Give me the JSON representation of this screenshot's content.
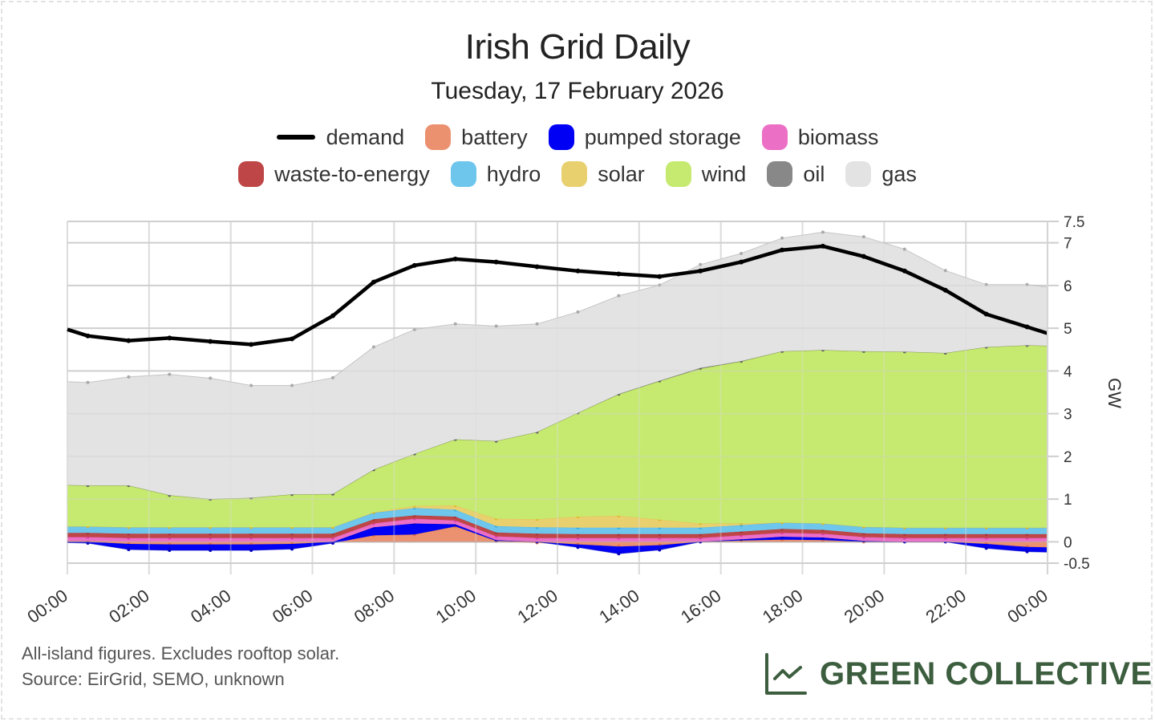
{
  "header": {
    "title": "Irish Grid Daily",
    "subtitle": "Tuesday, 17 February 2026"
  },
  "legend": {
    "row1": [
      {
        "key": "demand",
        "label": "demand",
        "color": "#000000",
        "kind": "line"
      },
      {
        "key": "battery",
        "label": "battery",
        "color": "#ec916f",
        "kind": "area"
      },
      {
        "key": "pumped_storage",
        "label": "pumped storage",
        "color": "#0000f5",
        "kind": "area"
      },
      {
        "key": "biomass",
        "label": "biomass",
        "color": "#ec6fc6",
        "kind": "area"
      }
    ],
    "row2": [
      {
        "key": "waste_to_energy",
        "label": "waste-to-energy",
        "color": "#bf4646",
        "kind": "area"
      },
      {
        "key": "hydro",
        "label": "hydro",
        "color": "#6ec6ec",
        "kind": "area"
      },
      {
        "key": "solar",
        "label": "solar",
        "color": "#e9d06f",
        "kind": "area"
      },
      {
        "key": "wind",
        "label": "wind",
        "color": "#c6ea6f",
        "kind": "area"
      },
      {
        "key": "oil",
        "label": "oil",
        "color": "#888888",
        "kind": "area"
      },
      {
        "key": "gas",
        "label": "gas",
        "color": "#e3e3e3",
        "kind": "area"
      }
    ]
  },
  "chart_data": {
    "type": "area",
    "title": "Irish Grid Daily",
    "subtitle": "Tuesday, 17 February 2026",
    "xlabel": "",
    "ylabel": "GW",
    "ylim": [
      -0.5,
      7.5
    ],
    "yticks": [
      7.5,
      7,
      6,
      5,
      4,
      3,
      2,
      1,
      0,
      -0.5
    ],
    "ytick_labels": [
      "7.5",
      "7",
      "6",
      "5",
      "4",
      "3",
      "2",
      "1",
      "0",
      "-0.5"
    ],
    "xlim_hours": [
      0,
      24
    ],
    "xticks_hours": [
      0,
      2,
      4,
      6,
      8,
      10,
      12,
      14,
      16,
      18,
      20,
      22,
      24
    ],
    "xtick_labels": [
      "00:00",
      "02:00",
      "04:00",
      "06:00",
      "08:00",
      "10:00",
      "12:00",
      "14:00",
      "16:00",
      "18:00",
      "20:00",
      "22:00",
      "00:00"
    ],
    "grid": true,
    "y_axis_side": "right",
    "legend_position": "top-center",
    "x_hours": [
      0,
      0.5,
      1.5,
      2.5,
      3.5,
      4.5,
      5.5,
      6.5,
      7.5,
      8.5,
      9.5,
      10.5,
      11.5,
      12.5,
      13.5,
      14.5,
      15.5,
      16.5,
      17.5,
      18.5,
      19.5,
      20.5,
      21.5,
      22.5,
      23.5,
      24
    ],
    "stack_order": [
      "battery",
      "pumped_storage",
      "biomass",
      "waste_to_energy",
      "hydro",
      "solar",
      "wind",
      "oil",
      "gas"
    ],
    "series": [
      {
        "name": "battery",
        "key": "battery",
        "color": "#ec916f",
        "values": [
          0.02,
          0.02,
          -0.05,
          -0.06,
          -0.06,
          -0.06,
          -0.05,
          0.0,
          0.15,
          0.17,
          0.36,
          0.02,
          -0.02,
          -0.06,
          -0.11,
          -0.08,
          0.0,
          0.03,
          0.05,
          0.04,
          0.0,
          0.0,
          0.0,
          -0.05,
          -0.12,
          -0.13
        ]
      },
      {
        "name": "pumped storage",
        "key": "pumped_storage",
        "color": "#0000f5",
        "values": [
          -0.02,
          -0.03,
          -0.13,
          -0.14,
          -0.14,
          -0.14,
          -0.12,
          -0.03,
          0.19,
          0.26,
          0.05,
          0.02,
          0.0,
          -0.07,
          -0.17,
          -0.11,
          0.0,
          0.03,
          0.07,
          0.06,
          0.02,
          0.0,
          0.0,
          -0.1,
          -0.11,
          -0.11
        ]
      },
      {
        "name": "biomass",
        "key": "biomass",
        "color": "#ec6fc6",
        "values": [
          0.09,
          0.09,
          0.09,
          0.09,
          0.09,
          0.09,
          0.09,
          0.09,
          0.09,
          0.11,
          0.09,
          0.09,
          0.09,
          0.09,
          0.09,
          0.09,
          0.09,
          0.09,
          0.09,
          0.09,
          0.09,
          0.09,
          0.09,
          0.09,
          0.09,
          0.09
        ]
      },
      {
        "name": "waste-to-energy",
        "key": "waste_to_energy",
        "color": "#bf4646",
        "values": [
          0.1,
          0.1,
          0.1,
          0.1,
          0.1,
          0.1,
          0.1,
          0.1,
          0.1,
          0.08,
          0.09,
          0.09,
          0.1,
          0.09,
          0.09,
          0.09,
          0.09,
          0.09,
          0.09,
          0.09,
          0.09,
          0.09,
          0.09,
          0.09,
          0.09,
          0.09
        ]
      },
      {
        "name": "hydro",
        "key": "hydro",
        "color": "#6ec6ec",
        "values": [
          0.15,
          0.15,
          0.15,
          0.15,
          0.15,
          0.15,
          0.15,
          0.15,
          0.15,
          0.17,
          0.16,
          0.15,
          0.15,
          0.15,
          0.15,
          0.15,
          0.15,
          0.15,
          0.15,
          0.15,
          0.15,
          0.15,
          0.15,
          0.15,
          0.15,
          0.15
        ]
      },
      {
        "name": "solar",
        "key": "solar",
        "color": "#e9d06f",
        "values": [
          0.0,
          0.0,
          0.0,
          0.0,
          0.0,
          0.0,
          0.0,
          0.0,
          0.01,
          0.05,
          0.1,
          0.17,
          0.19,
          0.26,
          0.28,
          0.19,
          0.1,
          0.04,
          0.0,
          0.0,
          0.0,
          0.0,
          0.0,
          0.0,
          0.0,
          0.0
        ]
      },
      {
        "name": "wind",
        "key": "wind",
        "color": "#c6ea6f",
        "values": [
          0.97,
          0.96,
          0.98,
          0.75,
          0.66,
          0.69,
          0.77,
          0.78,
          1.0,
          1.22,
          1.55,
          1.82,
          2.04,
          2.43,
          2.84,
          3.24,
          3.62,
          3.79,
          4.01,
          4.06,
          4.11,
          4.12,
          4.09,
          4.23,
          4.27,
          4.26
        ]
      },
      {
        "name": "oil",
        "key": "oil",
        "color": "#888888",
        "values": [
          0.0,
          0.0,
          0.0,
          0.0,
          0.0,
          0.0,
          0.0,
          0.0,
          0.0,
          0.0,
          0.0,
          0.0,
          0.0,
          0.0,
          0.01,
          0.01,
          0.02,
          0.01,
          0.0,
          0.0,
          0.0,
          0.0,
          0.0,
          0.0,
          0.0,
          0.0
        ]
      },
      {
        "name": "gas",
        "key": "gas",
        "color": "#e3e3e3",
        "values": [
          2.42,
          2.41,
          2.54,
          2.83,
          2.83,
          2.63,
          2.55,
          2.72,
          2.87,
          2.91,
          2.7,
          2.69,
          2.53,
          2.36,
          2.3,
          2.24,
          2.42,
          2.52,
          2.65,
          2.76,
          2.68,
          2.4,
          1.93,
          1.46,
          1.42,
          1.37
        ]
      },
      {
        "name": "demand",
        "key": "demand",
        "color": "#000000",
        "kind": "line",
        "values": [
          4.97,
          4.82,
          4.71,
          4.77,
          4.69,
          4.62,
          4.75,
          5.29,
          6.08,
          6.47,
          6.62,
          6.55,
          6.44,
          6.34,
          6.27,
          6.21,
          6.34,
          6.55,
          6.83,
          6.92,
          6.68,
          6.34,
          5.89,
          5.33,
          5.03,
          4.88
        ]
      }
    ]
  },
  "footer": {
    "note": "All-island figures. Excludes rooftop solar.",
    "source": "Source: EirGrid, SEMO, unknown",
    "brand": "GREEN COLLECTIVE",
    "brand_icon": "line-chart-icon",
    "brand_color": "#3c5e3f"
  }
}
